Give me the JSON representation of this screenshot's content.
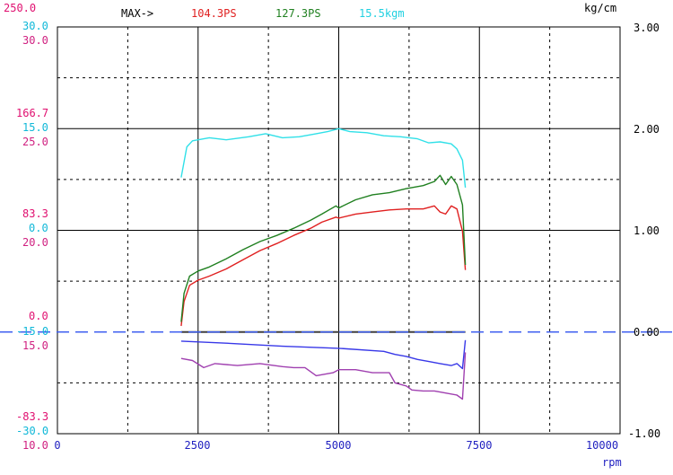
{
  "header": {
    "max_label": "MAX->",
    "max_values": [
      {
        "text": "104.3PS",
        "color": "#e02020"
      },
      {
        "text": "127.3PS",
        "color": "#208020"
      },
      {
        "text": "15.5kgm",
        "color": "#20d0e0"
      }
    ],
    "right_unit": "kg/cm"
  },
  "chart_data": {
    "type": "line",
    "x_axis": {
      "range": [
        0,
        10000
      ],
      "ticks": [
        "0",
        "2500",
        "5000",
        "7500",
        "10000"
      ],
      "unit": "rpm"
    },
    "left_scales": [
      {
        "color": "#e01070",
        "tick_labels": [
          "250.0",
          "166.7",
          "83.3",
          "0.0",
          "-83.3"
        ]
      },
      {
        "color": "#10b8d8",
        "tick_labels": [
          "30.0",
          "15.0",
          "0.0",
          "-15.0",
          "-30.0"
        ]
      },
      {
        "color": "#d02080",
        "tick_labels": [
          "30.0",
          "25.0",
          "20.0",
          "15.0",
          "10.0"
        ]
      }
    ],
    "right_axis": {
      "range": [
        -1.0,
        3.0
      ],
      "tick_labels": [
        "3.00",
        "2.00",
        "1.00",
        "0.00",
        "-1.00"
      ]
    },
    "grid": true,
    "series": [
      {
        "color": "#30e0e8",
        "x": [
          2200,
          2300,
          2400,
          2500,
          2700,
          3000,
          3400,
          3700,
          4000,
          4300,
          4600,
          4800,
          5000,
          5200,
          5500,
          5800,
          6100,
          6400,
          6600,
          6800,
          7000,
          7100,
          7200,
          7250
        ],
        "y": [
          1.52,
          1.82,
          1.88,
          1.89,
          1.91,
          1.89,
          1.92,
          1.95,
          1.91,
          1.92,
          1.95,
          1.97,
          2.0,
          1.97,
          1.96,
          1.93,
          1.92,
          1.9,
          1.86,
          1.87,
          1.85,
          1.8,
          1.69,
          1.42
        ]
      },
      {
        "color": "#e02020",
        "x": [
          2200,
          2250,
          2350,
          2500,
          2700,
          3000,
          3300,
          3600,
          3900,
          4200,
          4500,
          4700,
          4950,
          5000,
          5300,
          5600,
          5900,
          6200,
          6500,
          6700,
          6800,
          6900,
          7000,
          7100,
          7200,
          7250
        ],
        "y": [
          0.06,
          0.3,
          0.46,
          0.51,
          0.55,
          0.62,
          0.71,
          0.8,
          0.87,
          0.95,
          1.02,
          1.08,
          1.13,
          1.12,
          1.16,
          1.18,
          1.2,
          1.21,
          1.21,
          1.24,
          1.18,
          1.16,
          1.24,
          1.21,
          0.99,
          0.61
        ]
      },
      {
        "color": "#208020",
        "x": [
          2200,
          2250,
          2350,
          2500,
          2700,
          3000,
          3300,
          3600,
          3900,
          4200,
          4500,
          4700,
          4950,
          5000,
          5300,
          5600,
          5900,
          6200,
          6500,
          6700,
          6800,
          6900,
          7000,
          7100,
          7200,
          7250
        ],
        "y": [
          0.1,
          0.38,
          0.55,
          0.6,
          0.64,
          0.72,
          0.81,
          0.89,
          0.95,
          1.02,
          1.1,
          1.16,
          1.24,
          1.22,
          1.3,
          1.35,
          1.37,
          1.41,
          1.44,
          1.48,
          1.54,
          1.45,
          1.53,
          1.45,
          1.25,
          0.66
        ]
      },
      {
        "color": "#3838e8",
        "x": [
          2200,
          3000,
          4000,
          5000,
          5800,
          6000,
          6200,
          6400,
          6600,
          6800,
          7000,
          7100,
          7200,
          7250
        ],
        "y": [
          -0.09,
          -0.11,
          -0.14,
          -0.16,
          -0.19,
          -0.22,
          -0.24,
          -0.27,
          -0.29,
          -0.31,
          -0.33,
          -0.31,
          -0.36,
          -0.08
        ]
      },
      {
        "color": "#a040b0",
        "x": [
          2200,
          2400,
          2600,
          2800,
          3200,
          3600,
          4000,
          4200,
          4400,
          4600,
          4900,
          5000,
          5300,
          5600,
          5900,
          6000,
          6200,
          6300,
          6500,
          6700,
          6900,
          7100,
          7200,
          7250
        ],
        "y": [
          -0.26,
          -0.28,
          -0.35,
          -0.31,
          -0.33,
          -0.31,
          -0.34,
          -0.35,
          -0.35,
          -0.43,
          -0.4,
          -0.37,
          -0.37,
          -0.4,
          -0.4,
          -0.5,
          -0.53,
          -0.57,
          -0.58,
          -0.58,
          -0.6,
          -0.62,
          -0.66,
          -0.2
        ]
      },
      {
        "color": "#404040",
        "x": [
          2200,
          7250
        ],
        "y": [
          0.0,
          0.0
        ]
      }
    ],
    "reference_line": {
      "y": 0.0,
      "color": "#4060f0",
      "style": "dashed"
    }
  }
}
